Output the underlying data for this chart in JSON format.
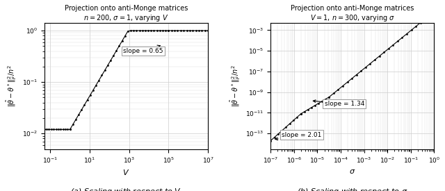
{
  "left": {
    "title_line1": "Projection onto anti-Monge matrices",
    "title_line2": "$n=200$, $\\sigma=1$, varying $V$",
    "xlabel": "$V$",
    "ylabel": "$\\|\\hat{\\theta} - \\theta^*\\|_F^2/n^2$",
    "caption": "(a) Scaling with respect to $V$"
  },
  "right": {
    "title_line1": "Projection onto anti-Monge matrices",
    "title_line2": "$V=1$, $n=300$, varying $\\sigma$",
    "xlabel": "$\\sigma$",
    "ylabel": "$\\|\\hat{\\theta} - \\theta^*\\|_F^2/n^2$",
    "caption": "(b) Scaling with respect to $\\sigma$"
  }
}
